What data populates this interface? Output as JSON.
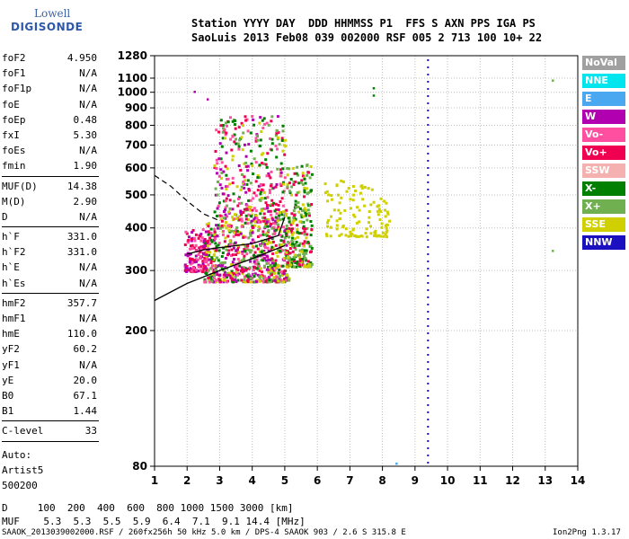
{
  "logo": {
    "line1": "Lowell",
    "line2": "DIGISONDE"
  },
  "header": {
    "line1": "Station YYYY DAY  DDD HHMMSS P1  FFS S AXN PPS IGA PS",
    "line2": "SaoLuis 2013 Feb08 039 002000 RSF 005 2 713 100 10+ 22"
  },
  "params": {
    "group1": [
      {
        "k": "foF2",
        "v": "4.950"
      },
      {
        "k": "foF1",
        "v": "N/A"
      },
      {
        "k": "foF1p",
        "v": "N/A"
      },
      {
        "k": "foE",
        "v": "N/A"
      },
      {
        "k": "foEp",
        "v": "0.48"
      },
      {
        "k": "fxI",
        "v": "5.30"
      },
      {
        "k": "foEs",
        "v": "N/A"
      },
      {
        "k": "fmin",
        "v": "1.90"
      }
    ],
    "group2": [
      {
        "k": "MUF(D)",
        "v": "14.38"
      },
      {
        "k": "M(D)",
        "v": "2.90"
      },
      {
        "k": "D",
        "v": "N/A"
      }
    ],
    "group3": [
      {
        "k": "h`F",
        "v": "331.0"
      },
      {
        "k": "h`F2",
        "v": "331.0"
      },
      {
        "k": "h`E",
        "v": "N/A"
      },
      {
        "k": "h`Es",
        "v": "N/A"
      }
    ],
    "group4": [
      {
        "k": "hmF2",
        "v": "357.7"
      },
      {
        "k": "hmF1",
        "v": "N/A"
      },
      {
        "k": "hmE",
        "v": "110.0"
      },
      {
        "k": "yF2",
        "v": "60.2"
      },
      {
        "k": "yF1",
        "v": "N/A"
      },
      {
        "k": "yE",
        "v": "20.0"
      },
      {
        "k": "B0",
        "v": "67.1"
      },
      {
        "k": "B1",
        "v": "1.44"
      }
    ],
    "group5": [
      {
        "k": "C-level",
        "v": "33"
      }
    ]
  },
  "auto": {
    "line1": "Auto:",
    "line2": "Artist5",
    "line3": "500200"
  },
  "footer": {
    "d_row": "D     100  200  400  600  800 1000 1500 3000 [km]",
    "muf_row": "MUF    5.3  5.3  5.5  5.9  6.4  7.1  9.1 14.4 [MHz]",
    "info": "SAAOK_2013039002000.RSF / 260fx256h 50 kHz 5.0 km / DPS-4 SAAOK 903 / 2.6 S 315.8 E",
    "version": "Ion2Png 1.3.17"
  },
  "legend": [
    {
      "label": "NoVal",
      "color": "#a0a0a0"
    },
    {
      "label": "NNE",
      "color": "#00e5ee"
    },
    {
      "label": "E",
      "color": "#4aa8f0"
    },
    {
      "label": "W",
      "color": "#b000b0"
    },
    {
      "label": "Vo-",
      "color": "#ff4fa0"
    },
    {
      "label": "Vo+",
      "color": "#f00050"
    },
    {
      "label": "SSW",
      "color": "#f5b0b0"
    },
    {
      "label": "X-",
      "color": "#008000"
    },
    {
      "label": "X+",
      "color": "#70b050"
    },
    {
      "label": "SSE",
      "color": "#d0d000"
    },
    {
      "label": "NNW",
      "color": "#1a10c0"
    }
  ],
  "chart_data": {
    "type": "scatter",
    "x_range": [
      1,
      14
    ],
    "x_ticks": [
      1,
      2,
      3,
      4,
      5,
      6,
      7,
      8,
      9,
      10,
      11,
      12,
      13,
      14
    ],
    "y_range": [
      80,
      1280
    ],
    "y_ticks": [
      80,
      200,
      300,
      400,
      500,
      600,
      700,
      800,
      900,
      1000,
      1100,
      1280
    ],
    "y_scale": "log",
    "grid": true,
    "vertical_dotted_line_x": 9.4,
    "profile_curve": [
      [
        1,
        245
      ],
      [
        2,
        275
      ],
      [
        3,
        300
      ],
      [
        4,
        325
      ],
      [
        5,
        355
      ]
    ],
    "trace_curve": [
      [
        2,
        335
      ],
      [
        2.5,
        345
      ],
      [
        3,
        350
      ],
      [
        4,
        360
      ],
      [
        4.8,
        380
      ],
      [
        5.0,
        430
      ]
    ],
    "dashed_curve": [
      [
        1,
        570
      ],
      [
        1.5,
        530
      ],
      [
        2,
        480
      ],
      [
        2.5,
        440
      ],
      [
        3,
        420
      ]
    ],
    "clusters": [
      {
        "x": [
          1.9,
          2.6
        ],
        "y": [
          300,
          400
        ],
        "n": 160,
        "colors": [
          "#f00050",
          "#ff4fa0",
          "#b000b0"
        ]
      },
      {
        "x": [
          2.5,
          5.1
        ],
        "y": [
          280,
          420
        ],
        "n": 650,
        "colors": [
          "#f00050",
          "#ff4fa0",
          "#008000",
          "#70b050",
          "#d0d000",
          "#b000b0"
        ]
      },
      {
        "x": [
          2.8,
          5.0
        ],
        "y": [
          420,
          860
        ],
        "n": 380,
        "colors": [
          "#f00050",
          "#b000b0",
          "#70b050",
          "#008000",
          "#d0d000",
          "#ff4fa0"
        ]
      },
      {
        "x": [
          5.0,
          5.8
        ],
        "y": [
          310,
          620
        ],
        "n": 260,
        "colors": [
          "#70b050",
          "#d0d000",
          "#f00050",
          "#008000"
        ]
      },
      {
        "x": [
          6.2,
          8.2
        ],
        "y": [
          380,
          560
        ],
        "n": 120,
        "colors": [
          "#d0d000"
        ]
      }
    ],
    "isolated_points": [
      {
        "x": 2.2,
        "y": 1010,
        "color": "#b000b0"
      },
      {
        "x": 2.6,
        "y": 960,
        "color": "#b000b0"
      },
      {
        "x": 7.7,
        "y": 1035,
        "color": "#008000"
      },
      {
        "x": 7.7,
        "y": 985,
        "color": "#008000"
      },
      {
        "x": 13.2,
        "y": 1090,
        "color": "#70b050"
      },
      {
        "x": 13.2,
        "y": 345,
        "color": "#70b050"
      },
      {
        "x": 8.4,
        "y": 82,
        "color": "#4aa8f0"
      }
    ]
  }
}
